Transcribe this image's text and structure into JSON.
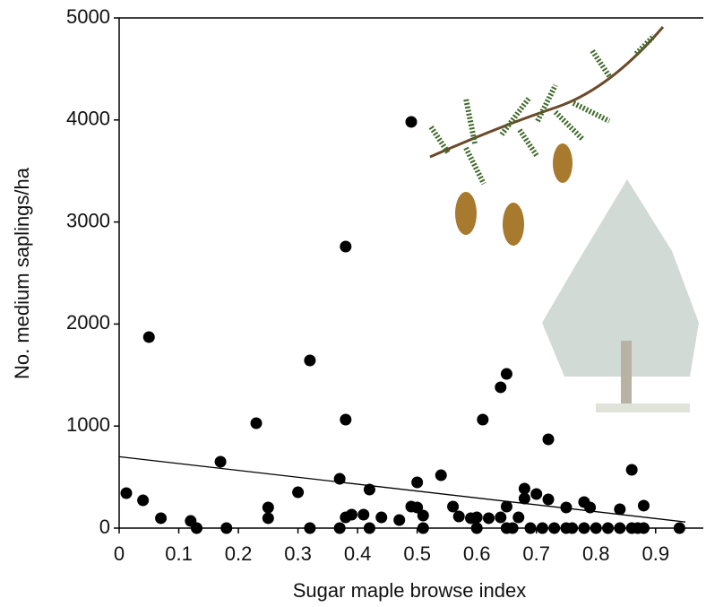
{
  "chart_data": {
    "type": "scatter",
    "x_label": "Sugar maple browse index",
    "y_label": "No. medium saplings/ha",
    "xlim": [
      0,
      0.98
    ],
    "ylim": [
      0,
      5000
    ],
    "xticks": [
      0,
      0.1,
      0.2,
      0.3,
      0.4,
      0.5,
      0.6,
      0.7,
      0.8,
      0.9
    ],
    "yticks": [
      0,
      1000,
      2000,
      3000,
      4000,
      5000
    ],
    "color": "#000000",
    "x": [
      0.012,
      0.04,
      0.05,
      0.07,
      0.12,
      0.13,
      0.17,
      0.18,
      0.23,
      0.25,
      0.25,
      0.3,
      0.32,
      0.32,
      0.37,
      0.37,
      0.38,
      0.38,
      0.38,
      0.39,
      0.41,
      0.42,
      0.42,
      0.44,
      0.47,
      0.49,
      0.49,
      0.5,
      0.5,
      0.51,
      0.51,
      0.54,
      0.56,
      0.57,
      0.59,
      0.6,
      0.6,
      0.61,
      0.62,
      0.64,
      0.64,
      0.65,
      0.65,
      0.65,
      0.66,
      0.67,
      0.68,
      0.68,
      0.69,
      0.7,
      0.71,
      0.72,
      0.72,
      0.73,
      0.75,
      0.75,
      0.76,
      0.78,
      0.78,
      0.79,
      0.8,
      0.82,
      0.84,
      0.84,
      0.86,
      0.86,
      0.87,
      0.88,
      0.88,
      0.94
    ],
    "values": [
      343,
      272,
      1872,
      97,
      70,
      0,
      650,
      0,
      1028,
      202,
      97,
      351,
      1643,
      0,
      483,
      0,
      2759,
      1063,
      105,
      132,
      132,
      378,
      0,
      105,
      79,
      3981,
      211,
      448,
      202,
      123,
      0,
      518,
      211,
      114,
      97,
      0,
      105,
      1063,
      97,
      1380,
      105,
      0,
      1511,
      211,
      0,
      105,
      387,
      290,
      0,
      334,
      0,
      870,
      281,
      0,
      0,
      202,
      0,
      255,
      0,
      202,
      0,
      0,
      185,
      0,
      571,
      0,
      0,
      220,
      0,
      0
    ],
    "fit_line": {
      "x": [
        0,
        0.95
      ],
      "values": [
        700,
        60
      ]
    }
  }
}
